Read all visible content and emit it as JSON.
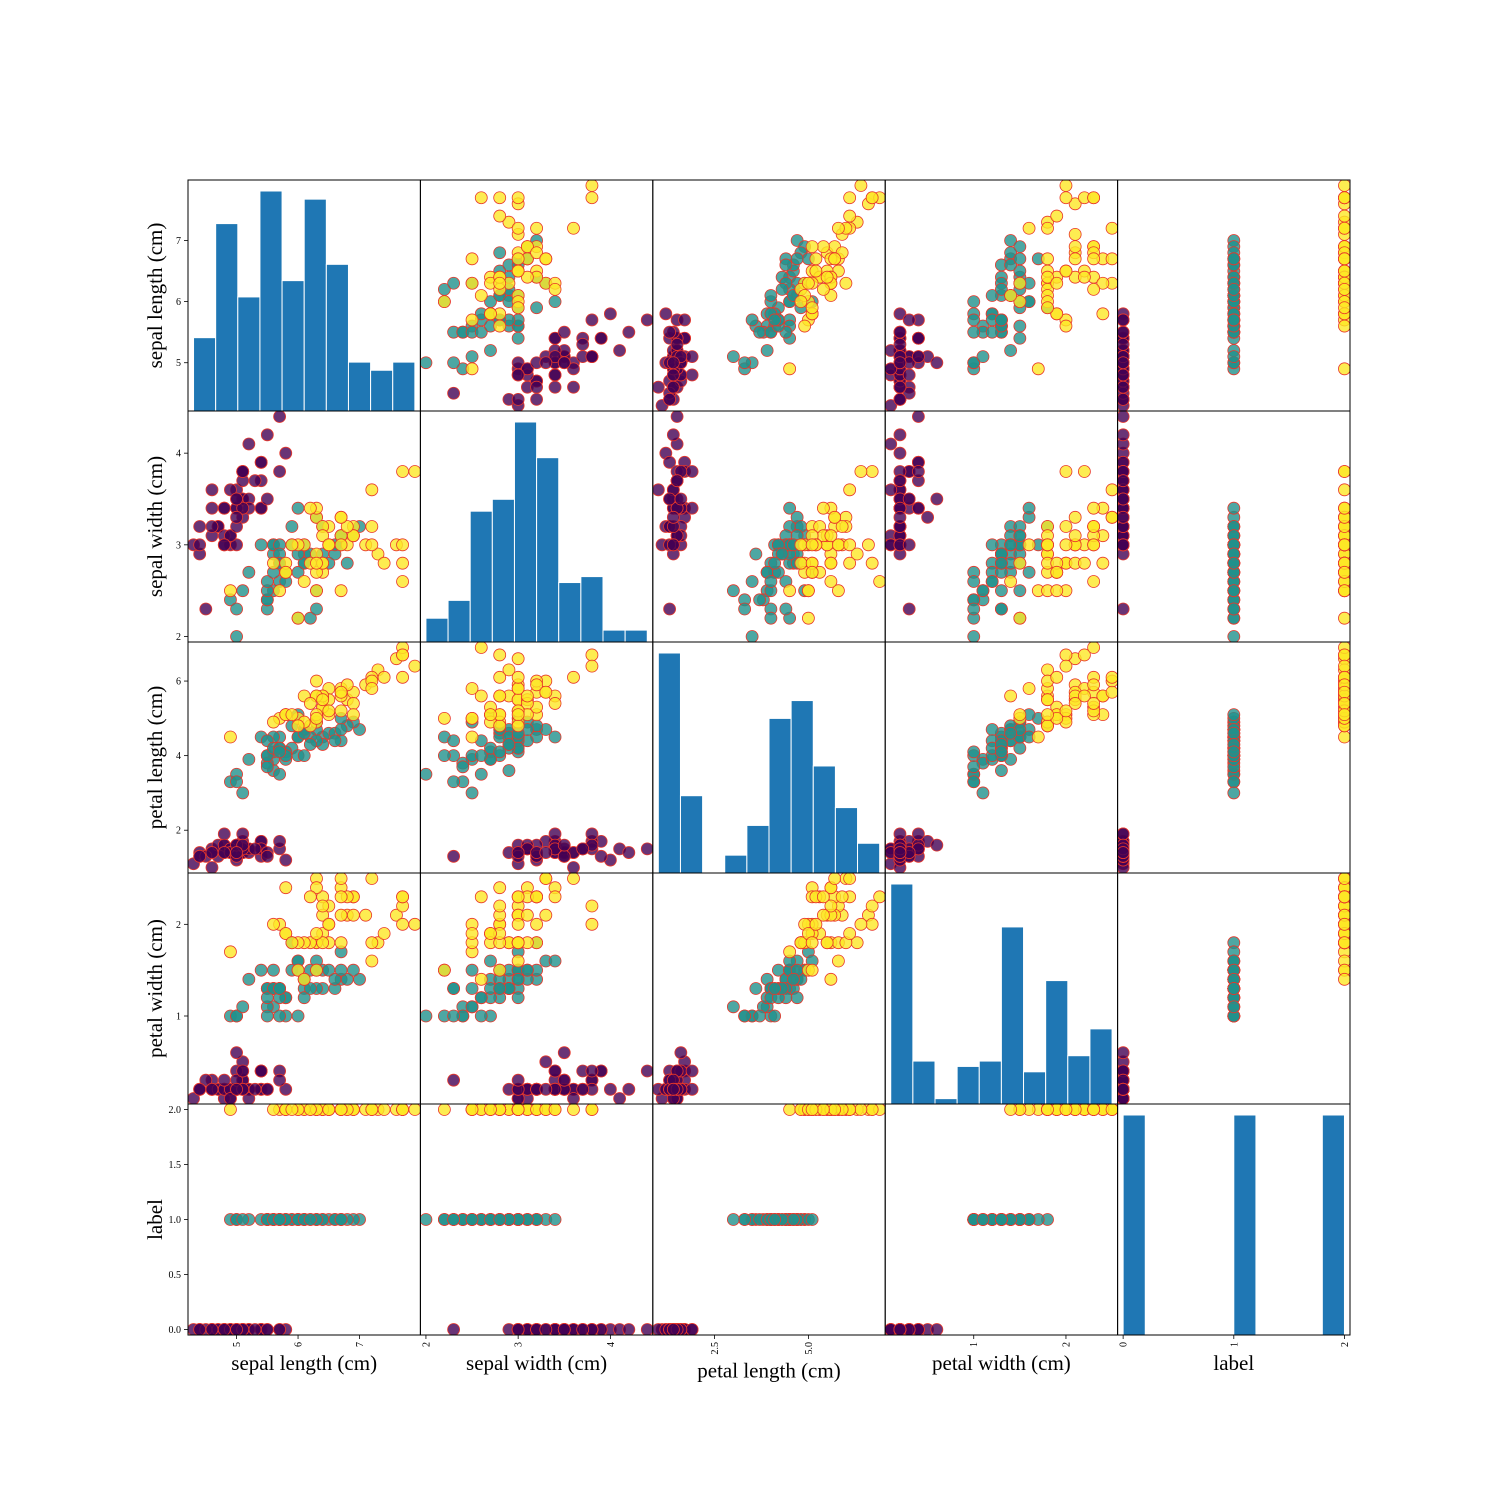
{
  "chart_data": {
    "type": "scatter_matrix",
    "class_colors": [
      "#440154",
      "#21918c",
      "#fde725"
    ],
    "edge_color": "#e8372a",
    "point_alpha": 0.8,
    "hist_color": "#1f77b4",
    "variables": [
      {
        "name": "sepal length (cm)",
        "values": [
          5.1,
          4.9,
          4.7,
          4.6,
          5.0,
          5.4,
          4.6,
          5.0,
          4.4,
          4.9,
          5.4,
          4.8,
          4.8,
          4.3,
          5.8,
          5.7,
          5.4,
          5.1,
          5.7,
          5.1,
          5.4,
          5.1,
          4.6,
          5.1,
          4.8,
          5.0,
          5.0,
          5.2,
          5.2,
          4.7,
          4.8,
          5.4,
          5.2,
          5.5,
          4.9,
          5.0,
          5.5,
          4.9,
          4.4,
          5.1,
          5.0,
          4.5,
          4.4,
          5.0,
          5.1,
          4.8,
          5.1,
          4.6,
          5.3,
          5.0,
          7.0,
          6.4,
          6.9,
          5.5,
          6.5,
          5.7,
          6.3,
          4.9,
          6.6,
          5.2,
          5.0,
          5.9,
          6.0,
          6.1,
          5.6,
          6.7,
          5.6,
          5.8,
          6.2,
          5.6,
          5.9,
          6.1,
          6.3,
          6.1,
          6.4,
          6.6,
          6.8,
          6.7,
          6.0,
          5.7,
          5.5,
          5.5,
          5.8,
          6.0,
          5.4,
          6.0,
          6.7,
          6.3,
          5.6,
          5.5,
          5.5,
          6.1,
          5.8,
          5.0,
          5.6,
          5.7,
          5.7,
          6.2,
          5.1,
          5.7,
          6.3,
          5.8,
          7.1,
          6.3,
          6.5,
          7.6,
          4.9,
          7.3,
          6.7,
          7.2,
          6.5,
          6.4,
          6.8,
          5.7,
          5.8,
          6.4,
          6.5,
          7.7,
          7.7,
          6.0,
          6.9,
          5.6,
          7.7,
          6.3,
          6.7,
          7.2,
          6.2,
          6.1,
          6.4,
          7.2,
          7.4,
          7.9,
          6.4,
          6.3,
          6.1,
          7.7,
          6.3,
          6.4,
          6.0,
          6.9,
          6.7,
          6.9,
          5.8,
          6.8,
          6.7,
          6.7,
          6.3,
          6.5,
          6.2,
          5.9
        ],
        "lim": [
          4.21,
          7.99
        ],
        "xticks": [
          5,
          6,
          7
        ],
        "yticks": [
          5,
          6,
          7
        ],
        "hist": {
          "bins": [
            4.3,
            4.66,
            5.02,
            5.38,
            5.74,
            6.1,
            6.46,
            6.82,
            7.18,
            7.54,
            7.9
          ],
          "counts": [
            9,
            23,
            14,
            27,
            16,
            26,
            18,
            6,
            5,
            6
          ]
        }
      },
      {
        "name": "sepal width (cm)",
        "values": [
          3.5,
          3.0,
          3.2,
          3.1,
          3.6,
          3.9,
          3.4,
          3.4,
          2.9,
          3.1,
          3.7,
          3.4,
          3.0,
          3.0,
          4.0,
          4.4,
          3.9,
          3.5,
          3.8,
          3.8,
          3.4,
          3.7,
          3.6,
          3.3,
          3.4,
          3.0,
          3.4,
          3.5,
          3.4,
          3.2,
          3.1,
          3.4,
          4.1,
          4.2,
          3.1,
          3.2,
          3.5,
          3.6,
          3.0,
          3.4,
          3.5,
          2.3,
          3.2,
          3.5,
          3.8,
          3.0,
          3.8,
          3.2,
          3.7,
          3.3,
          3.2,
          3.2,
          3.1,
          2.3,
          2.8,
          2.8,
          3.3,
          2.4,
          2.9,
          2.7,
          2.0,
          3.0,
          2.2,
          2.9,
          2.9,
          3.1,
          3.0,
          2.7,
          2.2,
          2.5,
          3.2,
          2.8,
          2.5,
          2.8,
          2.9,
          3.0,
          2.8,
          3.0,
          2.9,
          2.6,
          2.4,
          2.4,
          2.7,
          2.7,
          3.0,
          3.4,
          3.1,
          2.3,
          3.0,
          2.5,
          2.6,
          3.0,
          2.6,
          2.3,
          2.7,
          3.0,
          2.9,
          2.9,
          2.5,
          2.8,
          3.3,
          2.7,
          3.0,
          2.9,
          3.0,
          3.0,
          2.5,
          2.9,
          2.5,
          3.6,
          3.2,
          2.7,
          3.0,
          2.5,
          2.8,
          3.2,
          3.0,
          3.8,
          2.6,
          2.2,
          3.2,
          2.8,
          2.8,
          2.7,
          3.3,
          3.2,
          2.8,
          3.0,
          2.8,
          3.0,
          2.8,
          3.8,
          2.8,
          2.8,
          2.6,
          3.0,
          3.4,
          3.1,
          3.0,
          3.1,
          3.1,
          3.1,
          2.7,
          3.2,
          3.3,
          3.0,
          2.5,
          3.0,
          3.4,
          3.0
        ],
        "lim": [
          1.94,
          4.46
        ],
        "xticks": [
          2,
          3,
          4
        ],
        "yticks": [
          2,
          3,
          4
        ],
        "hist": {
          "bins": [
            2.0,
            2.24,
            2.48,
            2.72,
            2.96,
            3.2,
            3.44,
            3.68,
            3.92,
            4.16,
            4.4
          ],
          "counts": [
            4,
            7,
            22,
            24,
            37,
            31,
            10,
            11,
            2,
            2
          ]
        }
      },
      {
        "name": "petal length (cm)",
        "values": [
          1.4,
          1.4,
          1.3,
          1.5,
          1.4,
          1.7,
          1.4,
          1.5,
          1.4,
          1.5,
          1.5,
          1.6,
          1.4,
          1.1,
          1.2,
          1.5,
          1.3,
          1.4,
          1.7,
          1.5,
          1.7,
          1.5,
          1.0,
          1.7,
          1.9,
          1.6,
          1.6,
          1.5,
          1.4,
          1.6,
          1.6,
          1.5,
          1.5,
          1.4,
          1.5,
          1.2,
          1.3,
          1.4,
          1.3,
          1.5,
          1.3,
          1.3,
          1.3,
          1.6,
          1.9,
          1.4,
          1.6,
          1.4,
          1.5,
          1.4,
          4.7,
          4.5,
          4.9,
          4.0,
          4.6,
          4.5,
          4.7,
          3.3,
          4.6,
          3.9,
          3.5,
          4.2,
          4.0,
          4.7,
          3.6,
          4.4,
          4.5,
          4.1,
          4.5,
          3.9,
          4.8,
          4.0,
          4.9,
          4.7,
          4.3,
          4.4,
          4.8,
          5.0,
          4.5,
          3.5,
          3.8,
          3.7,
          3.9,
          5.1,
          4.5,
          4.5,
          4.7,
          4.4,
          4.1,
          4.0,
          4.4,
          4.6,
          4.0,
          3.3,
          4.2,
          4.2,
          4.2,
          4.3,
          3.0,
          4.1,
          6.0,
          5.1,
          5.9,
          5.6,
          5.8,
          6.6,
          4.5,
          6.3,
          5.8,
          6.1,
          5.1,
          5.3,
          5.5,
          5.0,
          5.1,
          5.3,
          5.5,
          6.7,
          6.9,
          5.0,
          5.7,
          4.9,
          6.7,
          4.9,
          5.7,
          6.0,
          4.8,
          4.9,
          5.6,
          5.8,
          6.1,
          6.4,
          5.6,
          5.1,
          5.6,
          6.1,
          5.6,
          5.5,
          4.8,
          5.4,
          5.6,
          5.1,
          5.1,
          5.9,
          5.7,
          5.2,
          5.0,
          5.2,
          5.4,
          5.1
        ],
        "lim": [
          0.8525,
          7.0475
        ],
        "xticks": [
          2.5,
          {
            "value": 5,
            "label": "5.0"
          }
        ],
        "yticks": [
          2,
          4,
          6
        ],
        "hist": {
          "bins": [
            1.0,
            1.59,
            2.18,
            2.77,
            3.36,
            3.95,
            4.54,
            5.13,
            5.72,
            6.31,
            6.9
          ],
          "counts": [
            37,
            13,
            0,
            3,
            8,
            26,
            29,
            18,
            11,
            5
          ]
        }
      },
      {
        "name": "petal width (cm)",
        "values": [
          0.2,
          0.2,
          0.2,
          0.2,
          0.2,
          0.4,
          0.3,
          0.2,
          0.2,
          0.1,
          0.2,
          0.2,
          0.1,
          0.1,
          0.2,
          0.4,
          0.4,
          0.3,
          0.3,
          0.3,
          0.2,
          0.4,
          0.2,
          0.5,
          0.2,
          0.2,
          0.4,
          0.2,
          0.2,
          0.2,
          0.2,
          0.4,
          0.1,
          0.2,
          0.2,
          0.2,
          0.2,
          0.1,
          0.2,
          0.2,
          0.3,
          0.3,
          0.2,
          0.6,
          0.4,
          0.3,
          0.2,
          0.2,
          0.2,
          0.2,
          1.4,
          1.5,
          1.5,
          1.3,
          1.5,
          1.3,
          1.6,
          1.0,
          1.3,
          1.4,
          1.0,
          1.5,
          1.0,
          1.4,
          1.3,
          1.4,
          1.5,
          1.0,
          1.5,
          1.1,
          1.8,
          1.3,
          1.5,
          1.2,
          1.3,
          1.4,
          1.4,
          1.7,
          1.5,
          1.0,
          1.1,
          1.0,
          1.2,
          1.6,
          1.5,
          1.6,
          1.5,
          1.3,
          1.3,
          1.3,
          1.2,
          1.4,
          1.2,
          1.0,
          1.3,
          1.2,
          1.3,
          1.3,
          1.1,
          1.3,
          2.5,
          1.9,
          2.1,
          1.8,
          2.2,
          2.1,
          1.7,
          1.8,
          1.8,
          2.5,
          2.0,
          1.9,
          2.1,
          2.0,
          2.4,
          2.3,
          1.8,
          2.2,
          2.3,
          1.5,
          2.3,
          2.0,
          2.0,
          1.8,
          2.1,
          1.8,
          1.8,
          1.8,
          2.1,
          1.6,
          1.9,
          2.0,
          2.2,
          1.5,
          1.4,
          2.3,
          2.4,
          1.8,
          1.8,
          2.1,
          2.4,
          2.3,
          1.9,
          2.3,
          2.5,
          2.3,
          1.9,
          2.0,
          2.3,
          1.8
        ],
        "lim": [
          0.04,
          2.56
        ],
        "xticks": [
          1,
          2
        ],
        "yticks": [
          1,
          2
        ],
        "hist": {
          "bins": [
            0.1,
            0.34,
            0.58,
            0.82,
            1.06,
            1.3,
            1.54,
            1.78,
            2.02,
            2.26,
            2.5
          ],
          "counts": [
            41,
            8,
            1,
            7,
            8,
            33,
            6,
            23,
            9,
            14
          ]
        }
      },
      {
        "name": "label",
        "values": [
          0,
          0,
          0,
          0,
          0,
          0,
          0,
          0,
          0,
          0,
          0,
          0,
          0,
          0,
          0,
          0,
          0,
          0,
          0,
          0,
          0,
          0,
          0,
          0,
          0,
          0,
          0,
          0,
          0,
          0,
          0,
          0,
          0,
          0,
          0,
          0,
          0,
          0,
          0,
          0,
          0,
          0,
          0,
          0,
          0,
          0,
          0,
          0,
          0,
          0,
          1,
          1,
          1,
          1,
          1,
          1,
          1,
          1,
          1,
          1,
          1,
          1,
          1,
          1,
          1,
          1,
          1,
          1,
          1,
          1,
          1,
          1,
          1,
          1,
          1,
          1,
          1,
          1,
          1,
          1,
          1,
          1,
          1,
          1,
          1,
          1,
          1,
          1,
          1,
          1,
          1,
          1,
          1,
          1,
          1,
          1,
          1,
          1,
          1,
          1,
          2,
          2,
          2,
          2,
          2,
          2,
          2,
          2,
          2,
          2,
          2,
          2,
          2,
          2,
          2,
          2,
          2,
          2,
          2,
          2,
          2,
          2,
          2,
          2,
          2,
          2,
          2,
          2,
          2,
          2,
          2,
          2,
          2,
          2,
          2,
          2,
          2,
          2,
          2,
          2,
          2,
          2,
          2,
          2,
          2,
          2,
          2,
          2,
          2,
          2
        ],
        "lim": [
          -0.05,
          2.05
        ],
        "xticks": [
          0,
          1,
          2
        ],
        "yticks": [
          {
            "value": 0,
            "label": "0.0"
          },
          0.5,
          {
            "value": 1,
            "label": "1.0"
          },
          1.5,
          {
            "value": 2,
            "label": "2.0"
          }
        ],
        "hist": {
          "bins": [
            0.0,
            0.2,
            0.4,
            0.6,
            0.8,
            1.0,
            1.2,
            1.4,
            1.6,
            1.8,
            2.0
          ],
          "counts": [
            50,
            0,
            0,
            0,
            0,
            50,
            0,
            0,
            0,
            50
          ]
        }
      }
    ]
  }
}
